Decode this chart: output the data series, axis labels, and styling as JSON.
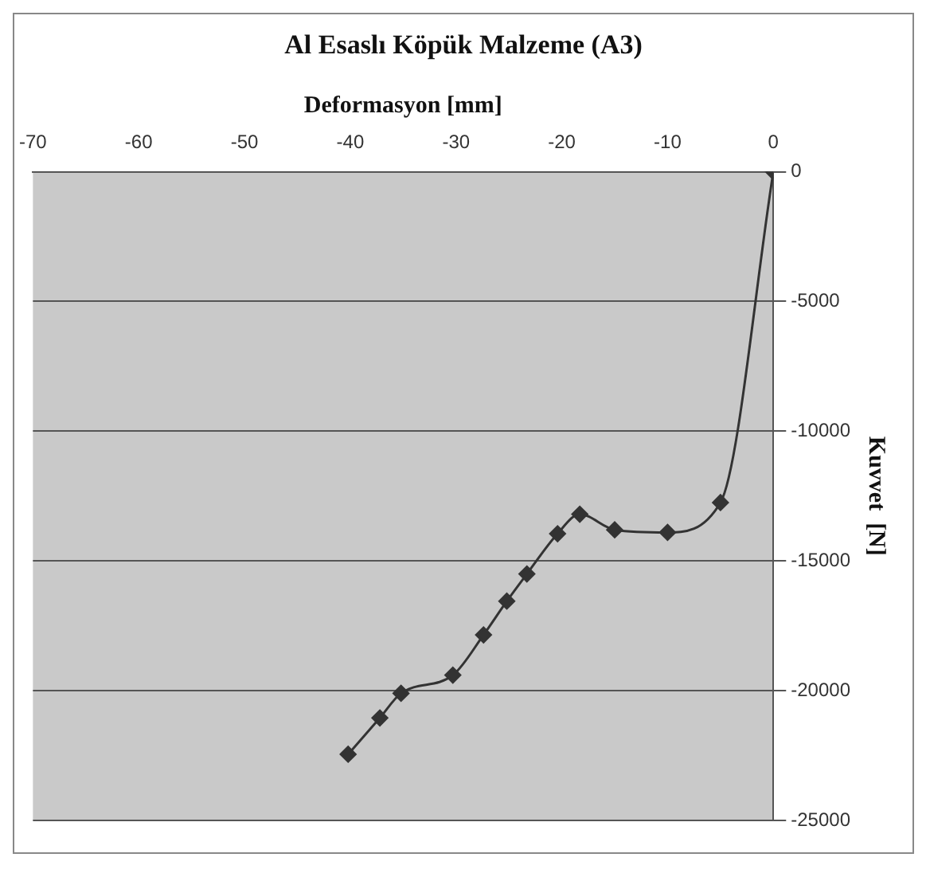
{
  "chart_data": {
    "type": "line",
    "title": "Al Esaslı Köpük Malzeme (A3)",
    "xlabel": "Deformasyon [mm]",
    "ylabel": "Kuvvet  [N]",
    "x": [
      0,
      -5,
      -10,
      -15,
      -18.3,
      -20.4,
      -23.3,
      -25.2,
      -27.4,
      -30.3,
      -35.2,
      -37.2,
      -40.2
    ],
    "series": [
      {
        "color": "#333333",
        "values": [
          0,
          -12750,
          -13900,
          -13800,
          -13200,
          -13950,
          -15500,
          -16550,
          -17850,
          -19400,
          -20100,
          -21050,
          -22450
        ]
      }
    ],
    "xlim": [
      -70,
      0
    ],
    "xticks": [
      -70,
      -60,
      -50,
      -40,
      -30,
      -20,
      -10,
      0
    ],
    "ylim": [
      -25000,
      0
    ],
    "yticks": [
      -25000,
      -20000,
      -15000,
      -10000,
      -5000,
      0
    ],
    "grid": "y",
    "legend": false,
    "marker": "diamond",
    "line_style": "solid"
  }
}
